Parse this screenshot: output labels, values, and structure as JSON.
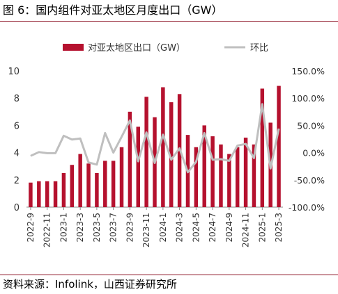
{
  "header": {
    "title": "图 6：国内组件对亚太地区月度出口（GW）"
  },
  "footer": {
    "source": "资料来源：Infolink，山西证券研究所"
  },
  "chart_data": {
    "type": "bar+line",
    "title": "图 6：国内组件对亚太地区月度出口（GW）",
    "categories": [
      "2022-9",
      "2022-10",
      "2022-11",
      "2022-12",
      "2023-1",
      "2023-2",
      "2023-3",
      "2023-4",
      "2023-5",
      "2023-6",
      "2023-7",
      "2023-8",
      "2023-9",
      "2023-10",
      "2023-11",
      "2023-12",
      "2024-1",
      "2024-2",
      "2024-3",
      "2024-4",
      "2024-5",
      "2024-6",
      "2024-7",
      "2024-8",
      "2024-9",
      "2024-10",
      "2024-11",
      "2024-12",
      "2025-1",
      "2025-2",
      "2025-3"
    ],
    "x_tick_labels": [
      "2022-9",
      "2022-11",
      "2023-1",
      "2023-3",
      "2023-5",
      "2023-7",
      "2023-9",
      "2023-11",
      "2024-1",
      "2024-3",
      "2024-5",
      "2024-7",
      "2024-9",
      "2024-11",
      "2025-1",
      "2025-3"
    ],
    "series": [
      {
        "name": "对亚太地区出口（GW）",
        "type": "bar",
        "axis": "left",
        "color": "#b5112e",
        "values": [
          1.8,
          1.9,
          1.9,
          1.9,
          2.5,
          3.1,
          3.9,
          3.2,
          2.5,
          3.4,
          3.4,
          4.4,
          7.0,
          5.9,
          8.1,
          6.6,
          8.8,
          7.7,
          8.3,
          5.3,
          4.4,
          6.0,
          5.2,
          4.6,
          3.9,
          4.4,
          5.1,
          4.6,
          8.7,
          6.2,
          8.9
        ]
      },
      {
        "name": "环比",
        "type": "line",
        "axis": "right",
        "unit": "%",
        "color": "#bfbfbf",
        "values": [
          -6,
          1,
          -1,
          -1,
          31,
          24,
          26,
          -18,
          -22,
          36,
          0,
          29,
          59,
          -16,
          37,
          -19,
          33,
          -13,
          8,
          -36,
          -17,
          36,
          -13,
          -12,
          -15,
          13,
          16,
          -10,
          89,
          -29,
          44
        ]
      }
    ],
    "y_left": {
      "ylim": [
        0,
        10
      ],
      "ticks": [
        0,
        2,
        4,
        6,
        8,
        10
      ]
    },
    "y_right": {
      "ylim": [
        -100,
        150
      ],
      "ticks": [
        "-100.0%",
        "-50.0%",
        "0.0%",
        "50.0%",
        "100.0%",
        "150.0%"
      ]
    },
    "legend": {
      "position": "top-center",
      "entries": [
        "对亚太地区出口（GW）",
        "环比"
      ]
    },
    "grid": false
  }
}
